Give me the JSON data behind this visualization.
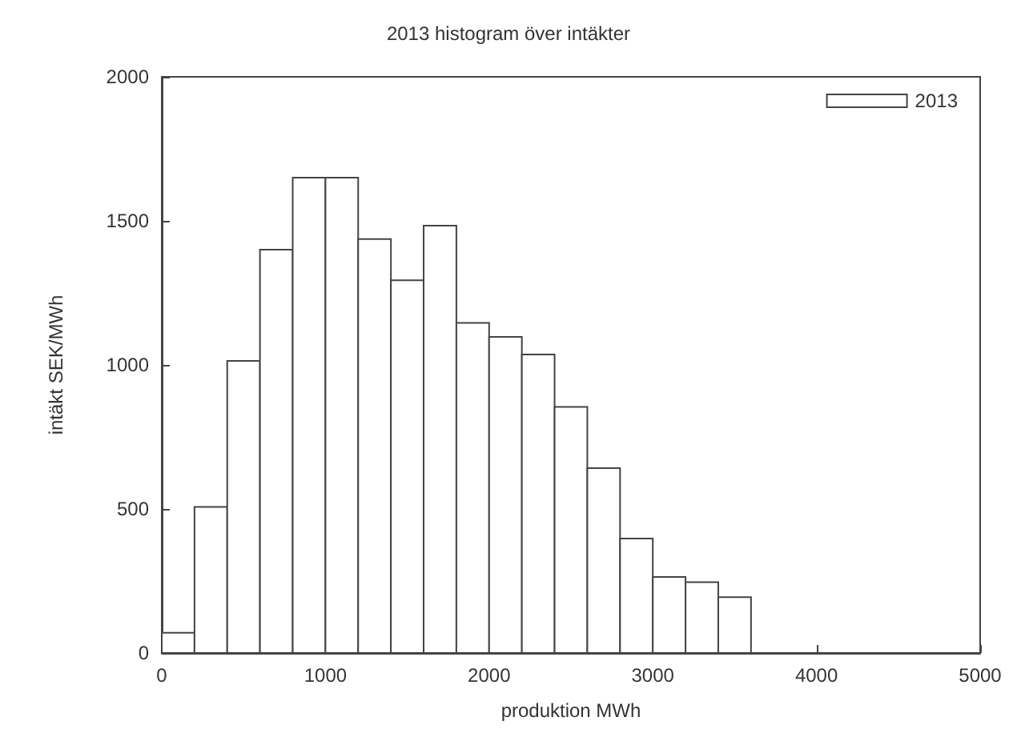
{
  "chart_data": {
    "type": "histogram",
    "title": "2013 histogram över intäkter",
    "xlabel": "produktion MWh",
    "ylabel": "intäkt SEK/MWh",
    "bins": [
      0,
      200,
      400,
      600,
      800,
      1000,
      1200,
      1400,
      1600,
      1800,
      2000,
      2200,
      2400,
      2600,
      2800,
      3000,
      3200,
      3400,
      3600
    ],
    "series": [
      {
        "name": "2013",
        "color": "#ffffff",
        "values": [
          70,
          507,
          1014,
          1400,
          1650,
          1650,
          1437,
          1294,
          1483,
          1146,
          1097,
          1036,
          854,
          642,
          397,
          264,
          246,
          194
        ]
      }
    ],
    "xlim": [
      0,
      5000
    ],
    "xticks": [
      0,
      1000,
      2000,
      3000,
      4000,
      5000
    ],
    "ylim": [
      0,
      2000
    ],
    "yticks": [
      0,
      500,
      1000,
      1500,
      2000
    ],
    "grid": false,
    "legend": "top right"
  }
}
